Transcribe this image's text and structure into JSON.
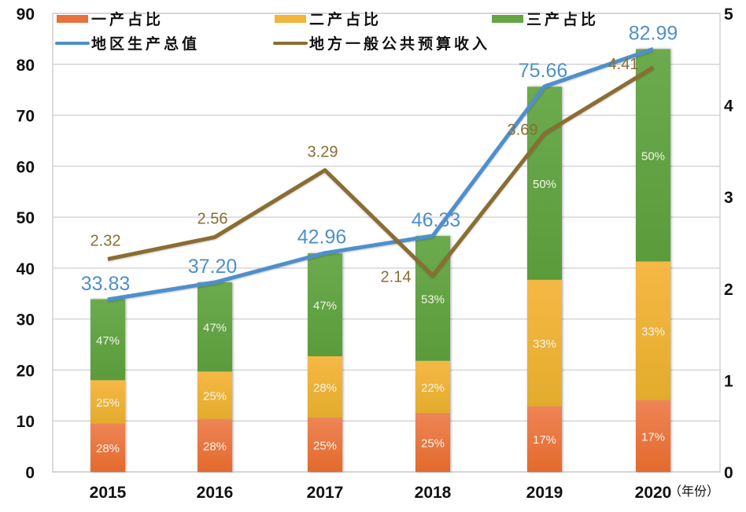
{
  "chart_data": {
    "type": "bar",
    "subtype": "stacked bar with two line series (dual axis)",
    "categories": [
      "2015",
      "2016",
      "2017",
      "2018",
      "2019",
      "2020"
    ],
    "x_unit_label": "（年份）",
    "left_axis": {
      "min": 0,
      "max": 90,
      "step": 10,
      "ticks": [
        "0",
        "10",
        "20",
        "30",
        "40",
        "50",
        "60",
        "70",
        "80",
        "90"
      ]
    },
    "right_axis": {
      "min": 0,
      "max": 5,
      "step": 1,
      "ticks": [
        "0",
        "1",
        "2",
        "3",
        "4",
        "5"
      ]
    },
    "grid": true,
    "legend_position": "top",
    "colors": {
      "primary": "#e8703a",
      "secondary": "#f2b53a",
      "tertiary": "#64a544",
      "gdp": "#4f8fcb",
      "budget": "#8a6d32"
    },
    "stack_series": [
      {
        "name": "一产占比",
        "color_key": "primary",
        "share_labels": [
          "28%",
          "28%",
          "25%",
          "25%",
          "17%",
          "17%"
        ],
        "values": [
          9.5,
          10.4,
          10.7,
          11.6,
          12.9,
          14.1
        ]
      },
      {
        "name": "二产占比",
        "color_key": "secondary",
        "share_labels": [
          "25%",
          "25%",
          "28%",
          "22%",
          "33%",
          "33%"
        ],
        "values": [
          8.5,
          9.3,
          12.0,
          10.2,
          24.8,
          27.2
        ]
      },
      {
        "name": "三产占比",
        "color_key": "tertiary",
        "share_labels": [
          "47%",
          "47%",
          "47%",
          "53%",
          "50%",
          "50%"
        ],
        "values": [
          15.9,
          17.5,
          20.2,
          24.5,
          37.9,
          41.7
        ]
      }
    ],
    "line_series": [
      {
        "name": "地区生产总值",
        "axis": "left",
        "color_key": "gdp",
        "values": [
          33.83,
          37.2,
          42.96,
          46.33,
          75.66,
          82.99
        ],
        "labels": [
          "33.83",
          "37.20",
          "42.96",
          "46.33",
          "75.66",
          "82.99"
        ]
      },
      {
        "name": "地方一般公共预算收入",
        "axis": "right",
        "color_key": "budget",
        "values": [
          2.32,
          2.56,
          3.29,
          2.14,
          3.69,
          4.41
        ],
        "labels": [
          "2.32",
          "2.56",
          "3.29",
          "2.14",
          "3.69",
          "4.41"
        ]
      }
    ],
    "legend": [
      "一产占比",
      "二产占比",
      "三产占比",
      "地区生产总值",
      "地方一般公共预算收入"
    ]
  }
}
